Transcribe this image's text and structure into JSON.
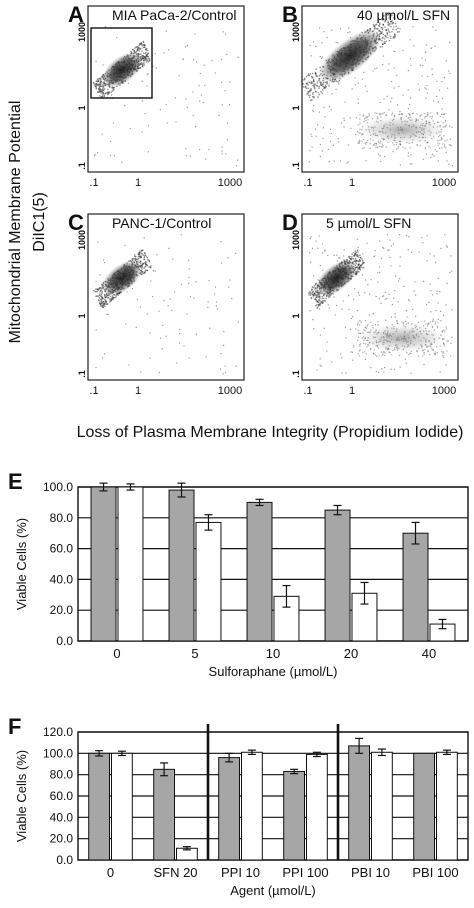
{
  "flow": {
    "y_title_line1": "Mitochondrial Membrane Potential",
    "y_title_line2": "DiIC1(5)",
    "x_title": "Loss of Plasma Membrane Integrity (Propidium Iodide)",
    "x_ticks": [
      ".1",
      "1",
      "1000"
    ],
    "y_ticks": [
      "1000",
      "1",
      ".1"
    ],
    "panels": [
      {
        "letter": "A",
        "label": "MIA PaCa-2/Control",
        "gate": true
      },
      {
        "letter": "B",
        "label": "40 µmol/L SFN",
        "gate": false
      },
      {
        "letter": "C",
        "label": "PANC-1/Control",
        "gate": false
      },
      {
        "letter": "D",
        "label": "5 µmol/L SFN",
        "gate": false
      }
    ]
  },
  "chart_data": [
    {
      "type": "bar",
      "panel": "E",
      "title": "",
      "xlabel": "Sulforaphane (µmol/L)",
      "ylabel": "Viable Cells (%)",
      "ylim": [
        0,
        100
      ],
      "yticks": [
        "0.0",
        "20.0",
        "40.0",
        "60.0",
        "80.0",
        "100.0"
      ],
      "categories": [
        "0",
        "5",
        "10",
        "20",
        "40"
      ],
      "series": [
        {
          "fill": "#a6a6a6",
          "values": [
            100,
            98,
            90,
            85,
            70
          ],
          "errors": [
            2.5,
            4.5,
            2,
            3,
            7
          ]
        },
        {
          "fill": "#ffffff",
          "values": [
            100,
            77,
            29,
            31,
            11
          ],
          "errors": [
            2,
            5,
            7,
            7,
            3
          ]
        }
      ]
    },
    {
      "type": "bar",
      "panel": "F",
      "title": "",
      "xlabel": "Agent (µmol/L)",
      "ylabel": "Viable Cells (%)",
      "ylim": [
        0,
        120
      ],
      "yticks": [
        "0.0",
        "20.0",
        "40.0",
        "60.0",
        "80.0",
        "100.0",
        "120.0"
      ],
      "categories": [
        "0",
        "SFN 20",
        "PPI 10",
        "PPI 100",
        "PBI 10",
        "PBI 100"
      ],
      "group_separators_after": [
        1,
        3
      ],
      "series": [
        {
          "fill": "#a6a6a6",
          "values": [
            100,
            85,
            96,
            83,
            107,
            100
          ],
          "errors": [
            2.5,
            6,
            4,
            2,
            7,
            0
          ]
        },
        {
          "fill": "#ffffff",
          "values": [
            100,
            11,
            101,
            99,
            101,
            101
          ],
          "errors": [
            2,
            1.5,
            2,
            2,
            3,
            2
          ]
        }
      ]
    }
  ]
}
